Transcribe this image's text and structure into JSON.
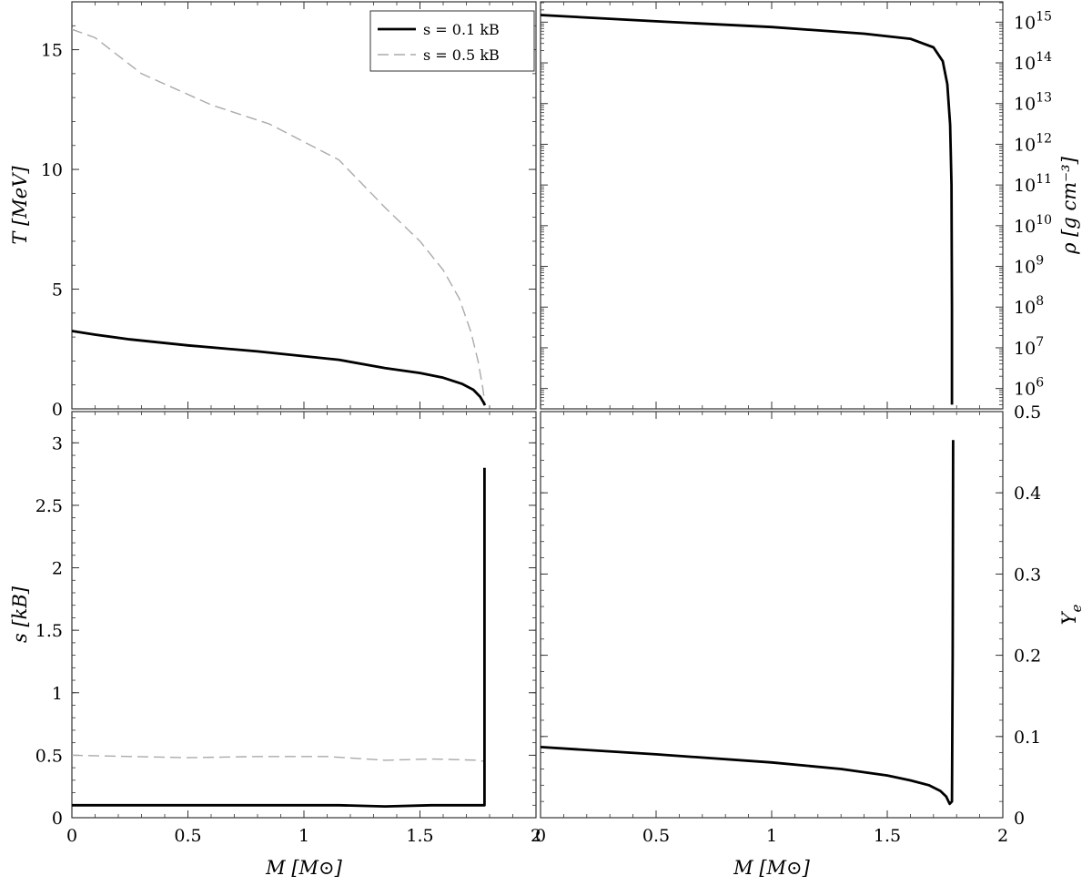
{
  "chart_data": [
    {
      "panel": "top-left",
      "type": "line",
      "ylabel": "T  [MeV]",
      "xlim": [
        0,
        2
      ],
      "ylim": [
        0,
        17
      ],
      "yticks": [
        "0",
        "5",
        "10",
        "15"
      ],
      "yscale": "linear",
      "legend": {
        "placement": "top-right",
        "entries": [
          "s = 0.1 kB",
          "s = 0.5 kB"
        ]
      },
      "series": [
        {
          "name": "s = 0.1 kB",
          "color": "#000000",
          "style": "solid",
          "x": [
            0,
            0.1,
            0.25,
            0.5,
            0.8,
            1.15,
            1.35,
            1.5,
            1.6,
            1.68,
            1.73,
            1.76,
            1.775,
            1.78
          ],
          "y": [
            3.25,
            3.1,
            2.9,
            2.65,
            2.4,
            2.05,
            1.7,
            1.5,
            1.3,
            1.05,
            0.8,
            0.5,
            0.25,
            0.15
          ]
        },
        {
          "name": "s = 0.5 kB",
          "color": "#aaaaaa",
          "style": "dashed",
          "x": [
            0,
            0.1,
            0.3,
            0.6,
            0.85,
            1.15,
            1.35,
            1.5,
            1.6,
            1.67,
            1.72,
            1.75,
            1.77,
            1.78
          ],
          "y": [
            15.85,
            15.5,
            14.0,
            12.7,
            11.9,
            10.4,
            8.4,
            7.0,
            5.8,
            4.6,
            3.2,
            2.0,
            0.9,
            0.2
          ]
        }
      ]
    },
    {
      "panel": "top-right",
      "type": "line",
      "ylabel": "ρ  [g cm⁻³]",
      "xlim": [
        0,
        2
      ],
      "ylim": [
        316227.77,
        3160000000000000.0
      ],
      "yscale": "log",
      "yticks": [
        "10",
        "10",
        "10",
        "10",
        "10",
        "10",
        "10",
        "10",
        "10",
        "10"
      ],
      "ytick_exponents": [
        "6",
        "7",
        "8",
        "9",
        "10",
        "11",
        "12",
        "13",
        "14",
        "15"
      ],
      "series": [
        {
          "name": "s = 0.1 kB",
          "color": "#000000",
          "style": "solid",
          "x": [
            0,
            0.5,
            1.0,
            1.4,
            1.6,
            1.7,
            1.74,
            1.76,
            1.772,
            1.778,
            1.78,
            1.78
          ],
          "y": [
            1500000000000000.0,
            1050000000000000.0,
            760000000000000.0,
            520000000000000.0,
            390000000000000.0,
            240000000000000.0,
            110000000000000.0,
            30000000000000.0,
            3000000000000.0,
            100000000000.0,
            100000000.0,
            400000
          ]
        },
        {
          "name": "s = 0.5 kB",
          "color": "#aaaaaa",
          "style": "dashed",
          "x": [
            0,
            0.5,
            1.0,
            1.4,
            1.6,
            1.7,
            1.74,
            1.76,
            1.772,
            1.778,
            1.78,
            1.78
          ],
          "y": [
            1500000000000000.0,
            1050000000000000.0,
            760000000000000.0,
            520000000000000.0,
            390000000000000.0,
            240000000000000.0,
            110000000000000.0,
            30000000000000.0,
            3000000000000.0,
            100000000000.0,
            100000000.0,
            400000
          ]
        }
      ]
    },
    {
      "panel": "bottom-left",
      "type": "line",
      "xlabel": "M  [M⊙]",
      "ylabel": "s  [kB]",
      "xlim": [
        0,
        2
      ],
      "ylim": [
        0,
        3.25
      ],
      "xticks": [
        "0",
        "0.5",
        "1",
        "1.5",
        "2"
      ],
      "yticks": [
        "0",
        "0.5",
        "1",
        "1.5",
        "2",
        "2.5",
        "3"
      ],
      "series": [
        {
          "name": "s = 0.1 kB",
          "color": "#000000",
          "style": "solid",
          "x": [
            0,
            0.5,
            1.0,
            1.15,
            1.35,
            1.55,
            1.77,
            1.778,
            1.778
          ],
          "y": [
            0.1,
            0.1,
            0.1,
            0.1,
            0.09,
            0.1,
            0.1,
            0.1,
            2.8
          ]
        },
        {
          "name": "s = 0.5 kB",
          "color": "#aaaaaa",
          "style": "dashed",
          "x": [
            0,
            0.25,
            0.5,
            0.8,
            1.1,
            1.35,
            1.55,
            1.75,
            1.778,
            1.778
          ],
          "y": [
            0.5,
            0.49,
            0.48,
            0.49,
            0.49,
            0.46,
            0.47,
            0.46,
            0.45,
            1.12
          ]
        }
      ]
    },
    {
      "panel": "bottom-right",
      "type": "line",
      "xlabel": "M  [M⊙]",
      "ylabel": "Y",
      "ylabel_sub": "e",
      "xlim": [
        0,
        2
      ],
      "ylim": [
        0,
        0.5
      ],
      "xticks": [
        "0",
        "0.5",
        "1",
        "1.5",
        "2"
      ],
      "yticks": [
        "0",
        "0.1",
        "0.2",
        "0.3",
        "0.4",
        "0.5"
      ],
      "series": [
        {
          "name": "s = 0.1 kB",
          "color": "#000000",
          "style": "solid",
          "x": [
            0,
            0.5,
            1.0,
            1.3,
            1.5,
            1.6,
            1.68,
            1.73,
            1.755,
            1.77,
            1.78,
            1.783,
            1.785
          ],
          "y": [
            0.087,
            0.078,
            0.068,
            0.06,
            0.052,
            0.046,
            0.04,
            0.033,
            0.026,
            0.017,
            0.02,
            0.2,
            0.465
          ]
        },
        {
          "name": "s = 0.5 kB",
          "color": "#aaaaaa",
          "style": "dashed",
          "x": [
            0,
            0.5,
            1.0,
            1.3,
            1.5,
            1.6,
            1.68,
            1.73,
            1.755,
            1.77,
            1.78,
            1.783,
            1.785
          ],
          "y": [
            0.087,
            0.078,
            0.068,
            0.06,
            0.052,
            0.046,
            0.04,
            0.033,
            0.026,
            0.017,
            0.02,
            0.2,
            0.465
          ]
        }
      ]
    }
  ]
}
